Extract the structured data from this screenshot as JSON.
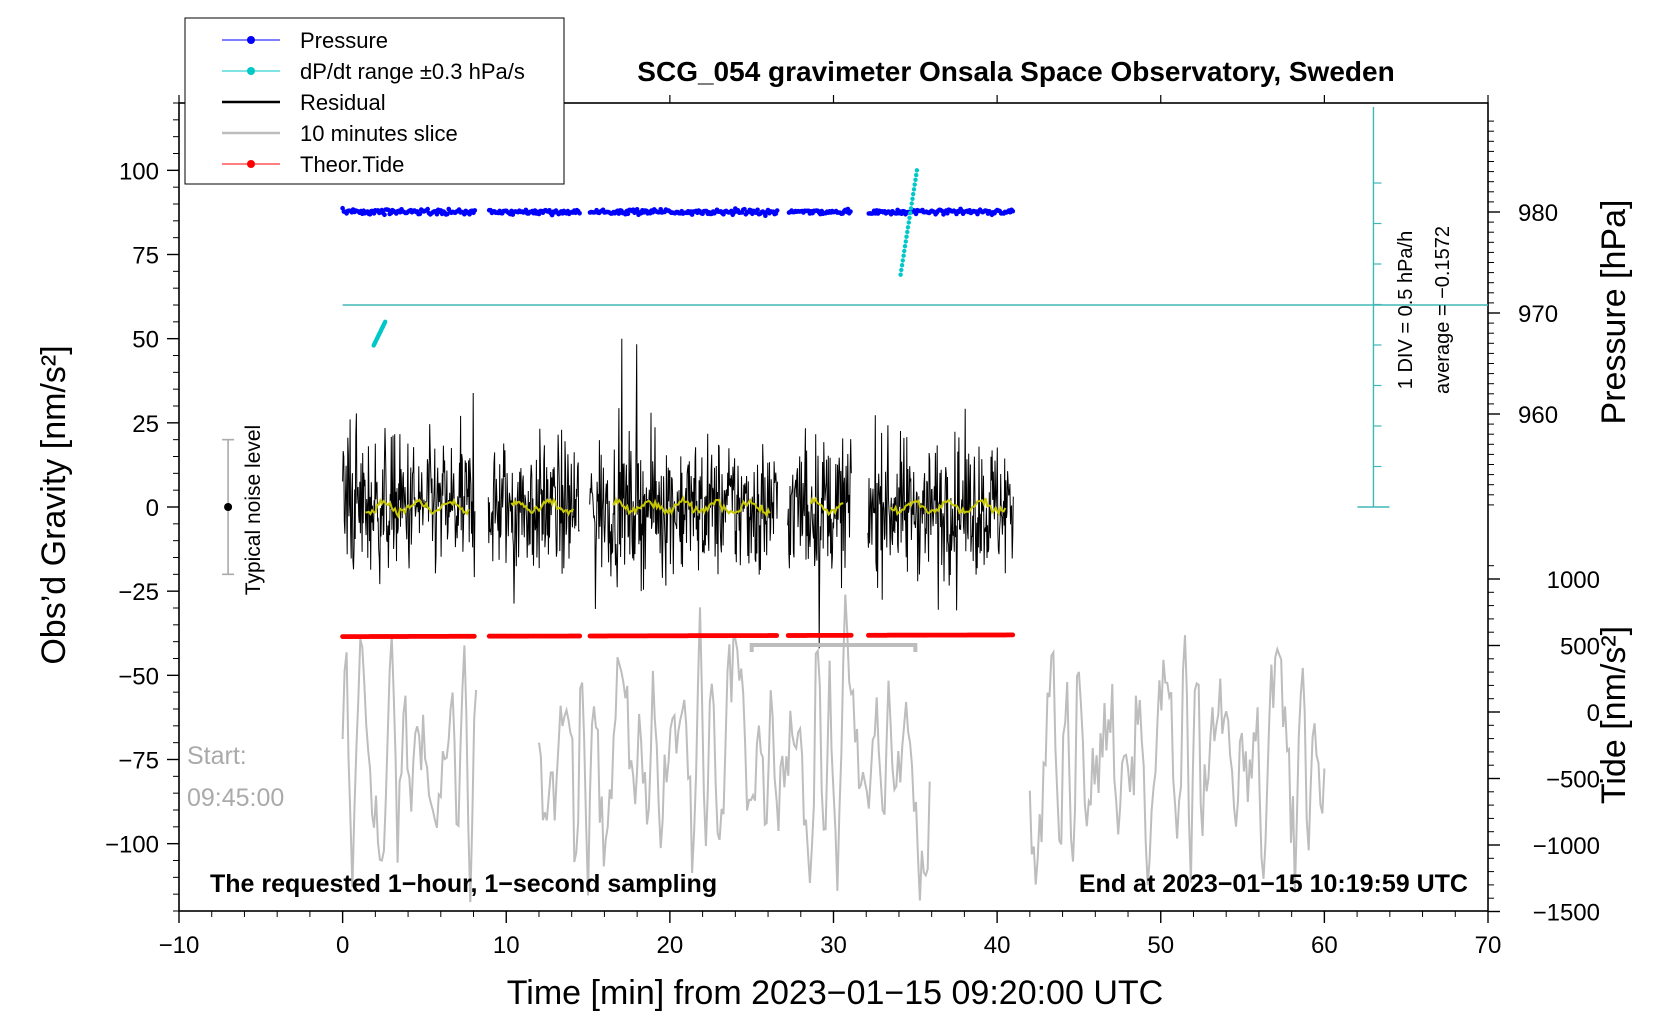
{
  "chart_data": {
    "type": "line",
    "title": "SCG_054 gravimeter Onsala Space Observatory, Sweden",
    "xlabel": "Time [min] from 2023−01−15 09:20:00 UTC",
    "x_range": [
      -10,
      70
    ],
    "x_ticks": [
      -10,
      0,
      10,
      20,
      30,
      40,
      50,
      60,
      70
    ],
    "x_tick_labels": [
      "−10",
      "0",
      "10",
      "20",
      "30",
      "40",
      "50",
      "60",
      "70"
    ],
    "left_axis": {
      "label": "Obs’d Gravity [nm/s²]",
      "range": [
        -120,
        120
      ],
      "ticks": [
        -100,
        -75,
        -50,
        -25,
        0,
        25,
        50,
        75,
        100
      ],
      "tick_labels": [
        "−100",
        "−75",
        "−50",
        "−25",
        "0",
        "25",
        "50",
        "75",
        "100"
      ]
    },
    "pressure_axis": {
      "label": "Pressure [hPa]",
      "ticks": [
        960,
        970,
        980
      ],
      "tick_labels": [
        "960",
        "970",
        "980"
      ]
    },
    "tide_axis": {
      "label": "Tide [nm/s²]",
      "ticks": [
        -1500,
        -1000,
        -500,
        0,
        500,
        1000
      ],
      "tick_labels": [
        "−1500",
        "−1000",
        "−500",
        "0",
        "500",
        "1000"
      ]
    },
    "legend": {
      "placement": "top-left",
      "entries": [
        {
          "name": "Pressure",
          "color": "#0000ff",
          "marker": "dot"
        },
        {
          "name": "dP/dt range ±0.3 hPa/s",
          "color": "#00c8c8",
          "marker": "dot"
        },
        {
          "name": "Residual",
          "color": "#000000",
          "marker": "line"
        },
        {
          "name": "10 minutes slice",
          "color": "#bdbdbd",
          "marker": "line"
        },
        {
          "name": "Theor.Tide",
          "color": "#ff0000",
          "marker": "dot"
        }
      ]
    },
    "series": [
      {
        "name": "Pressure",
        "approx_level_hpa": 980.0,
        "x_range": [
          0,
          41
        ],
        "gaps_min": [
          [
            8.1,
            8.9
          ],
          [
            14.5,
            15.1
          ],
          [
            26.6,
            27.2
          ],
          [
            31.1,
            32.1
          ]
        ]
      },
      {
        "name": "dP/dt range ±0.3 hPa/s",
        "segments": [
          {
            "x": [
              1.9,
              2.6
            ],
            "y": [
              48,
              55
            ]
          },
          {
            "x": [
              34.1,
              35.1
            ],
            "y": [
              69,
              100
            ]
          }
        ]
      },
      {
        "name": "Residual",
        "x_range": [
          0,
          41
        ],
        "typical_amplitude_nm_s2": 20
      },
      {
        "name": "10 minutes slice",
        "x_range": [
          0,
          60
        ],
        "gap_min": [
          36,
          42
        ]
      },
      {
        "name": "Theor.Tide",
        "x_range": [
          0,
          41
        ],
        "y_start": -38.5,
        "y_end": -38.0
      }
    ],
    "slice_bracket": {
      "x_range": [
        25,
        35
      ]
    },
    "pressure_reference_line_y": 60,
    "pressure_scale_bar": {
      "label": "1 DIV = 0.5 hPa/h",
      "x": 63,
      "y_range": [
        0,
        120
      ]
    },
    "average_label": "average = −0.1572",
    "noise_bar": {
      "label": "Typical noise level",
      "x": -7,
      "y_range": [
        -20,
        20
      ]
    },
    "start_label_1": "Start:",
    "start_label_2": "09:45:00",
    "bottom_left_note": "The requested 1−hour, 1−second sampling",
    "bottom_right_note": "End at 2023−01−15 10:19:59 UTC"
  }
}
